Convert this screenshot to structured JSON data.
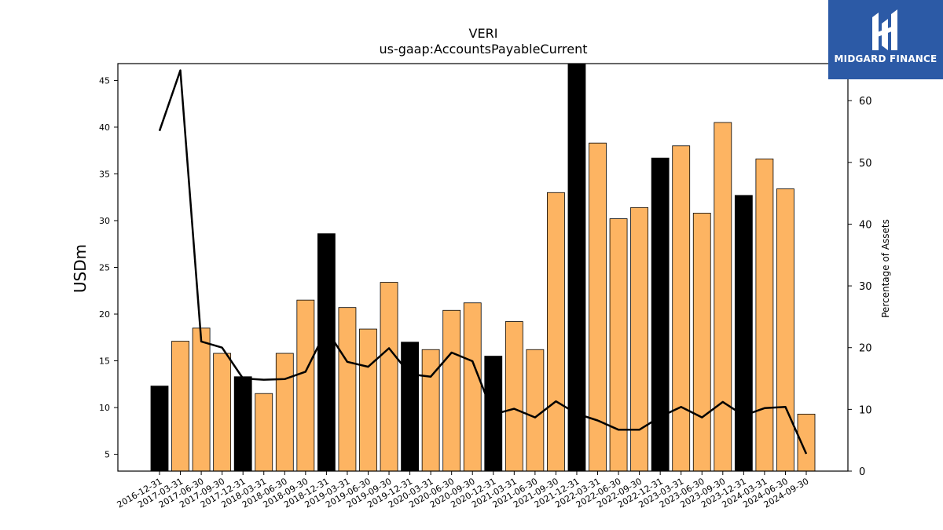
{
  "chart_data": {
    "type": "bar",
    "title": "VERI",
    "subtitle": "us-gaap:AccountsPayableCurrent",
    "ylabel": "USDm",
    "y2label": "Percentage of Assets",
    "ylim": [
      3.2,
      46.8
    ],
    "y2lim": [
      0,
      66
    ],
    "yticks": [
      5,
      10,
      15,
      20,
      25,
      30,
      35,
      40,
      45
    ],
    "y2ticks": [
      0,
      10,
      20,
      30,
      40,
      50,
      60
    ],
    "categories": [
      "2016-12-31",
      "2017-03-31",
      "2017-06-30",
      "2017-09-30",
      "2017-12-31",
      "2018-03-31",
      "2018-06-30",
      "2018-09-30",
      "2018-12-31",
      "2019-03-31",
      "2019-06-30",
      "2019-09-30",
      "2019-12-31",
      "2020-03-31",
      "2020-06-30",
      "2020-09-30",
      "2020-12-31",
      "2021-03-31",
      "2021-06-30",
      "2021-09-30",
      "2021-12-31",
      "2022-03-31",
      "2022-06-30",
      "2022-09-30",
      "2022-12-31",
      "2023-03-31",
      "2023-06-30",
      "2023-09-30",
      "2023-12-31",
      "2024-03-31",
      "2024-06-30",
      "2024-09-30"
    ],
    "series": [
      {
        "type": "bar",
        "values": [
          12.3,
          17.1,
          18.5,
          15.8,
          13.3,
          11.5,
          15.8,
          21.5,
          28.6,
          20.7,
          18.4,
          23.4,
          17.0,
          16.2,
          20.4,
          21.2,
          15.5,
          19.2,
          16.2,
          33.0,
          46.8,
          38.3,
          30.2,
          31.4,
          36.7,
          38.0,
          30.8,
          40.5,
          32.7,
          36.6,
          33.4,
          9.3
        ]
      },
      {
        "type": "line",
        "axis": "right",
        "values": [
          55.1,
          64.9,
          21.0,
          20.0,
          15.0,
          14.8,
          14.9,
          16.1,
          22.9,
          17.7,
          16.9,
          19.9,
          15.7,
          15.3,
          19.2,
          17.8,
          9.2,
          10.1,
          8.7,
          11.3,
          9.3,
          8.2,
          6.7,
          6.7,
          8.8,
          10.4,
          8.7,
          11.2,
          9.0,
          10.2,
          10.4,
          2.8
        ]
      }
    ],
    "colors": {
      "annual_bar": "#000000",
      "quarter_bar": "#fdb462",
      "line": "#000000"
    },
    "legend": "none",
    "grid": false
  },
  "logo": {
    "text": "MIDGARD FINANCE",
    "background": "#2c5aa6"
  }
}
